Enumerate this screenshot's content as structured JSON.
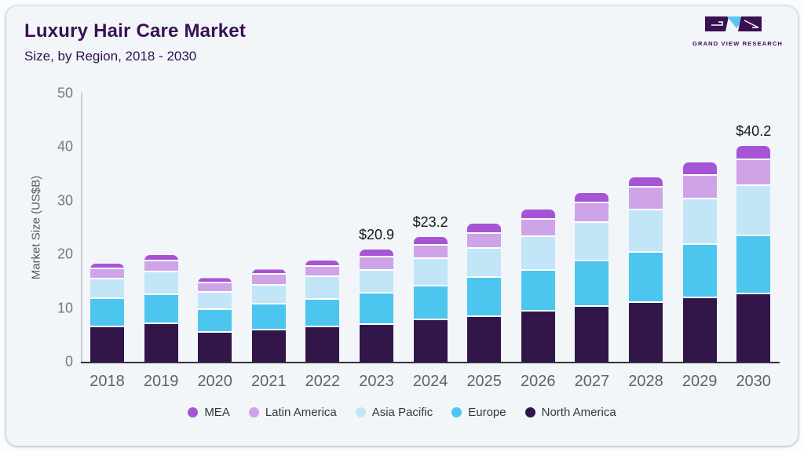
{
  "header": {
    "title": "Luxury Hair Care Market",
    "subtitle": "Size, by Region, 2018 - 2030",
    "logo_text": "GRAND VIEW RESEARCH"
  },
  "chart_data": {
    "type": "bar",
    "stacked": true,
    "title": "Luxury Hair Care Market",
    "subtitle": "Size, by Region, 2018 - 2030",
    "xlabel": "",
    "ylabel": "Market Size (US$B)",
    "ylim": [
      0,
      50
    ],
    "yticks": [
      0,
      10,
      20,
      30,
      40,
      50
    ],
    "grid": false,
    "legend_position": "bottom",
    "categories": [
      "2018",
      "2019",
      "2020",
      "2021",
      "2022",
      "2023",
      "2024",
      "2025",
      "2026",
      "2027",
      "2028",
      "2029",
      "2030"
    ],
    "series": [
      {
        "name": "North America",
        "color": "#321549",
        "values": [
          6.4,
          7.0,
          5.4,
          5.9,
          6.4,
          6.9,
          7.7,
          8.4,
          9.3,
          10.2,
          10.9,
          11.8,
          12.6
        ]
      },
      {
        "name": "Europe",
        "color": "#4cc5ef",
        "values": [
          5.3,
          5.4,
          4.3,
          4.8,
          5.1,
          5.8,
          6.3,
          7.2,
          7.7,
          8.5,
          9.4,
          10.0,
          10.8
        ]
      },
      {
        "name": "Asia Pacific",
        "color": "#c3e5f8",
        "values": [
          3.6,
          4.3,
          3.2,
          3.5,
          4.3,
          4.3,
          5.1,
          5.5,
          6.2,
          7.2,
          7.9,
          8.5,
          9.4
        ]
      },
      {
        "name": "Latin America",
        "color": "#cfa3e8",
        "values": [
          1.9,
          2.0,
          1.7,
          2.0,
          1.9,
          2.5,
          2.5,
          2.7,
          3.3,
          3.7,
          4.2,
          4.3,
          4.8
        ]
      },
      {
        "name": "MEA",
        "color": "#a654d6",
        "values": [
          1.1,
          1.2,
          1.0,
          1.0,
          1.1,
          1.4,
          1.6,
          1.9,
          1.8,
          1.9,
          2.0,
          2.6,
          2.6
        ]
      }
    ],
    "totals_note": "bar totals (US$B)",
    "totals": [
      18.3,
      19.9,
      15.6,
      17.2,
      18.8,
      20.9,
      23.2,
      25.7,
      28.3,
      31.5,
      34.4,
      37.2,
      40.2
    ],
    "annotations": [
      {
        "category": "2023",
        "label": "$20.9"
      },
      {
        "category": "2024",
        "label": "$23.2"
      },
      {
        "category": "2030",
        "label": "$40.2"
      }
    ],
    "legend": [
      {
        "name": "MEA",
        "color": "#a654d6"
      },
      {
        "name": "Latin America",
        "color": "#cfa3e8"
      },
      {
        "name": "Asia Pacific",
        "color": "#c3e5f8"
      },
      {
        "name": "Europe",
        "color": "#4cc5ef"
      },
      {
        "name": "North America",
        "color": "#321549"
      }
    ]
  }
}
